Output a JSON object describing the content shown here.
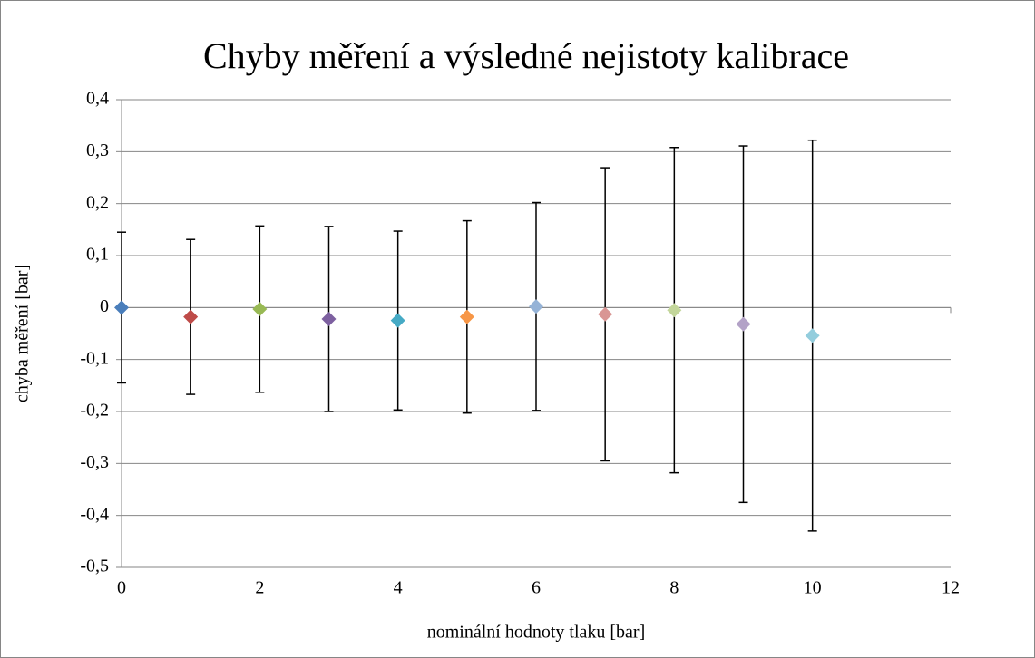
{
  "chart_data": {
    "type": "scatter",
    "title": "Chyby měření a výsledné nejistoty kalibrace",
    "x_label": "nominální hodnoty tlaku [bar]",
    "y_label": "chyba měření [bar]",
    "x": [
      0,
      1,
      2,
      3,
      4,
      5,
      6,
      7,
      8,
      9,
      10
    ],
    "values": [
      0,
      -0.018,
      -0.003,
      -0.022,
      -0.025,
      -0.018,
      0.002,
      -0.013,
      -0.005,
      -0.032,
      -0.054
    ],
    "errors": [
      0.145,
      0.149,
      0.16,
      0.178,
      0.172,
      0.185,
      0.2,
      0.282,
      0.313,
      0.343,
      0.376
    ],
    "colors": [
      "#4a7ebb",
      "#be4b48",
      "#98b954",
      "#7d60a0",
      "#46aac5",
      "#f79646",
      "#95b3d7",
      "#d99694",
      "#c3d69b",
      "#b3a2c7",
      "#93cddd"
    ],
    "xlim": [
      0,
      12
    ],
    "xticks": [
      0,
      2,
      4,
      6,
      8,
      10,
      12
    ],
    "ylim": [
      -0.5,
      0.4
    ],
    "yticks": [
      {
        "value": -0.5,
        "label": "-0,5"
      },
      {
        "value": -0.4,
        "label": "-0,4"
      },
      {
        "value": -0.3,
        "label": "-0,3"
      },
      {
        "value": -0.2,
        "label": "-0,2"
      },
      {
        "value": -0.1,
        "label": "-0,1"
      },
      0,
      {
        "value": 0.1,
        "label": "0,1"
      },
      {
        "value": 0.2,
        "label": "0,2"
      },
      {
        "value": 0.3,
        "label": "0,3"
      },
      {
        "value": 0.4,
        "label": "0,4"
      }
    ],
    "grid": true
  }
}
